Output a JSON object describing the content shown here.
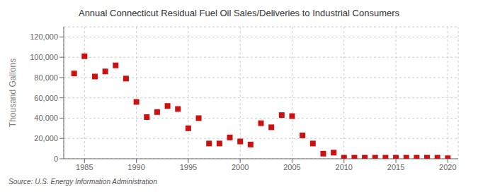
{
  "chart_data": {
    "type": "scatter",
    "title": "Annual Connecticut Residual Fuel Oil Sales/Deliveries to Industrial Consumers",
    "ylabel": "Thousand Gallons",
    "annotations": [
      "Source: U.S. Energy Information Administration"
    ],
    "x": [
      1984,
      1985,
      1986,
      1987,
      1988,
      1989,
      1990,
      1991,
      1992,
      1993,
      1994,
      1995,
      1996,
      1997,
      1998,
      1999,
      2000,
      2001,
      2002,
      2003,
      2004,
      2005,
      2006,
      2007,
      2008,
      2009,
      2010,
      2011,
      2012,
      2013,
      2014,
      2015,
      2016,
      2017,
      2018,
      2019,
      2020
    ],
    "values": [
      84000,
      101000,
      81000,
      86000,
      92000,
      79000,
      56000,
      41000,
      46000,
      52000,
      49000,
      30000,
      40000,
      15000,
      15000,
      21000,
      17000,
      14000,
      35000,
      31000,
      43000,
      42000,
      23000,
      15000,
      5000,
      6000,
      1000,
      1000,
      1000,
      1000,
      1000,
      1000,
      1000,
      1000,
      1000,
      1000,
      500
    ],
    "color": "#cc1111",
    "marker": "square",
    "xlim": [
      1983,
      2021
    ],
    "xticks": [
      1985,
      1990,
      1995,
      2000,
      2005,
      2010,
      2015,
      2020
    ],
    "ylim": [
      0,
      130000
    ],
    "yticks": [
      0,
      {
        "value": 20000,
        "label": "20,000"
      },
      {
        "value": 40000,
        "label": "40,000"
      },
      {
        "value": 60000,
        "label": "60,000"
      },
      {
        "value": 80000,
        "label": "80,000"
      },
      {
        "value": 100000,
        "label": "100,000"
      },
      {
        "value": 120000,
        "label": "120,000"
      }
    ],
    "grid": true
  }
}
